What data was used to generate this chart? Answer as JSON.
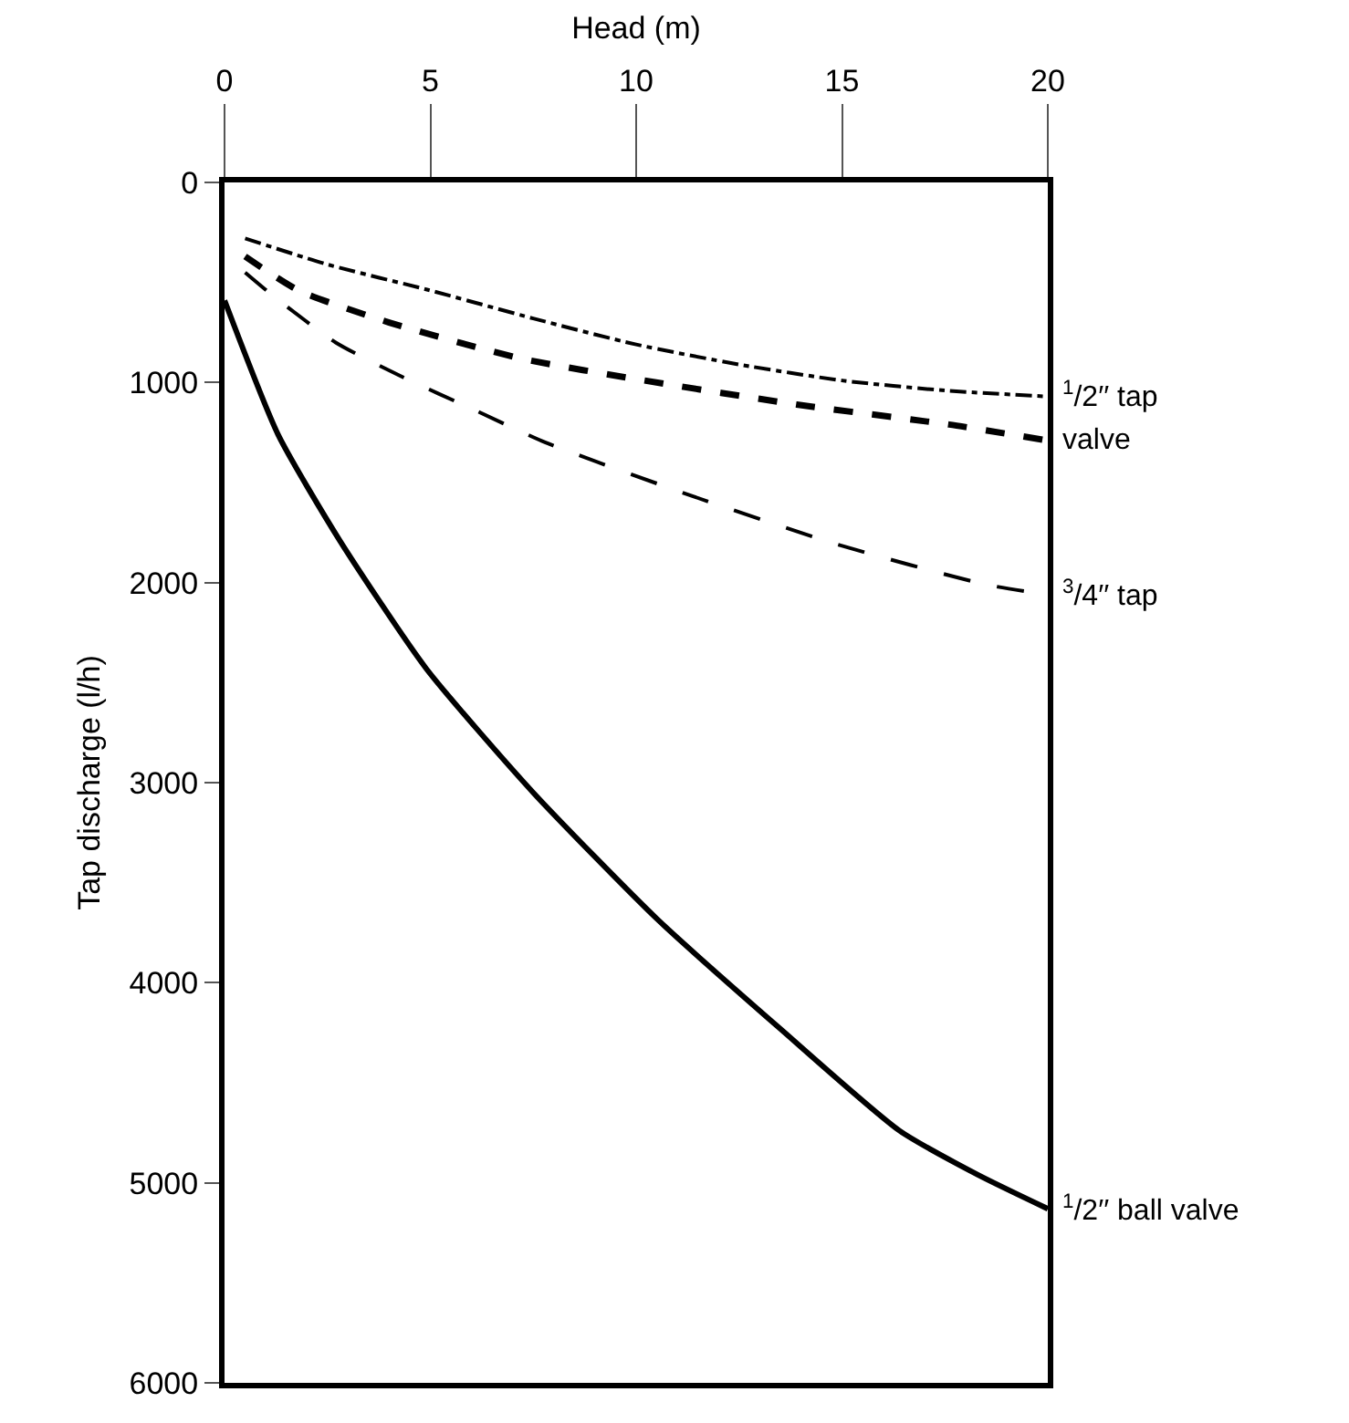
{
  "chart_data": {
    "type": "line",
    "xlabel": "Head (m)",
    "ylabel": "Tap discharge (l/h)",
    "xlim": [
      0,
      20
    ],
    "xticks": [
      0,
      5,
      10,
      15,
      20
    ],
    "ylim": [
      6000,
      0
    ],
    "yticks": [
      0,
      1000,
      2000,
      3000,
      4000,
      5000,
      6000
    ],
    "legend": false,
    "marker": "none",
    "series": [
      {
        "name": "$^{1}$/2′′ tap",
        "color": "#000000",
        "line_style": "dashdot",
        "x": [
          0.5,
          2.5,
          5,
          7.5,
          10,
          12.5,
          15,
          17.5,
          20
        ],
        "values": [
          280,
          410,
          540,
          680,
          810,
          910,
          990,
          1040,
          1070
        ]
      },
      {
        "name": "valve",
        "color": "#000000",
        "line_style": "dashed",
        "x": [
          0.5,
          1.8,
          4,
          7.2,
          10.2,
          13.9,
          17.6,
          20
        ],
        "values": [
          370,
          540,
          700,
          880,
          990,
          1110,
          1210,
          1290
        ]
      },
      {
        "name": "$^{3}$/4′′ tap",
        "color": "#000000",
        "line_style": "longdash",
        "x": [
          0.5,
          1.2,
          2.7,
          4.3,
          6.1,
          7.8,
          11.4,
          14.9,
          18.5,
          20
        ],
        "values": [
          450,
          570,
          800,
          970,
          1140,
          1300,
          1570,
          1810,
          2010,
          2060
        ]
      },
      {
        "name": "$^{1}$/2′′ ball valve",
        "color": "#000000",
        "line_style": "solid",
        "x": [
          0,
          1.3,
          2.8,
          4.9,
          7.5,
          10.5,
          13.5,
          16.4,
          18.3,
          20
        ],
        "values": [
          590,
          1260,
          1790,
          2430,
          3050,
          3680,
          4230,
          4740,
          4960,
          5130
        ]
      }
    ]
  }
}
